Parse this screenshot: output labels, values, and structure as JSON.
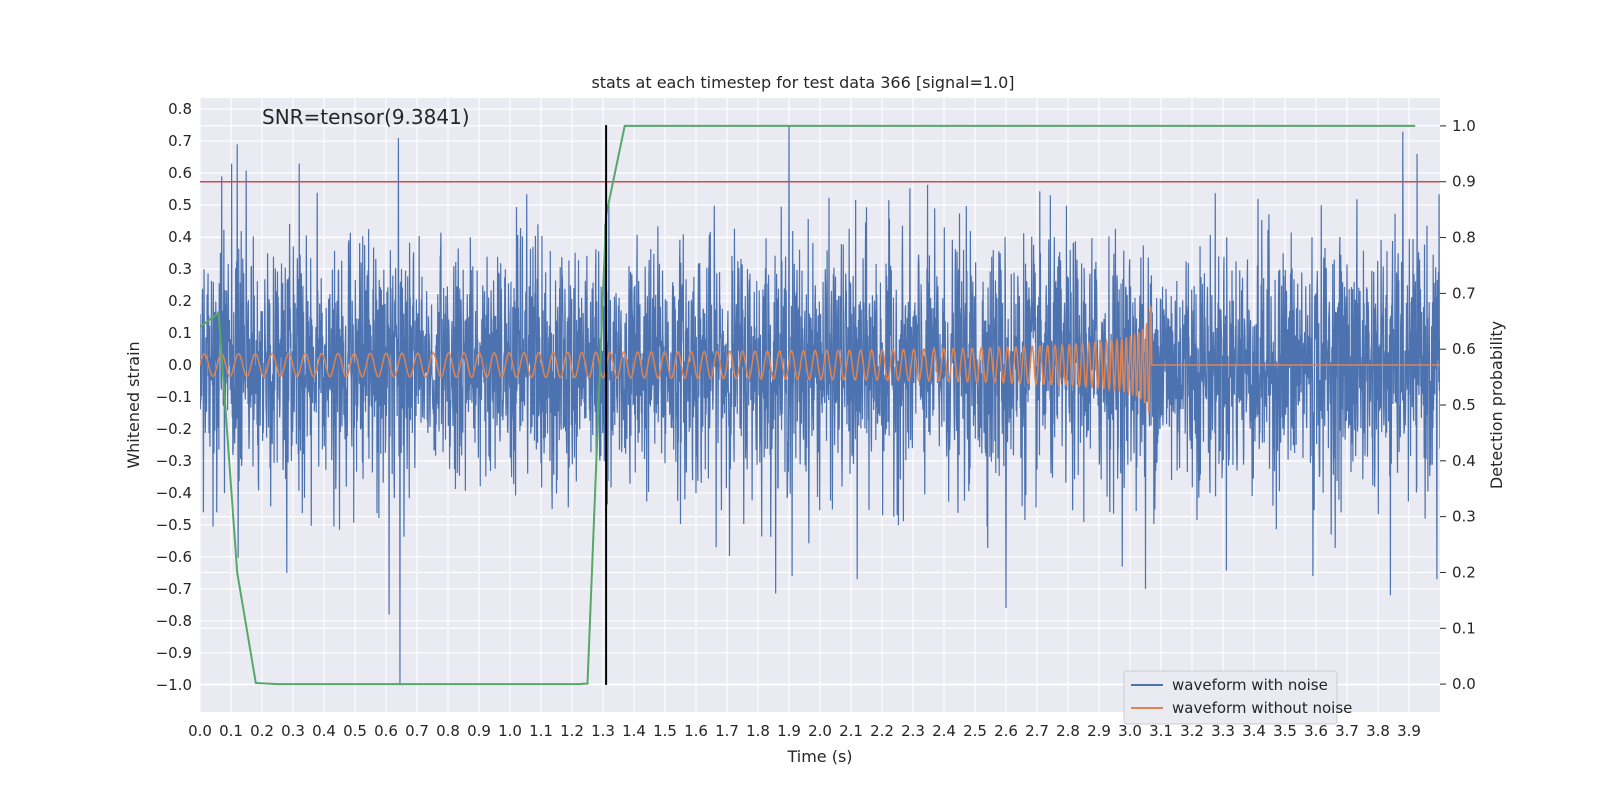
{
  "chart_data": {
    "type": "line",
    "title": "stats at each timestep for test data 366 [signal=1.0]",
    "xlabel": "Time (s)",
    "ylabel": "Whitened strain",
    "y2label": "Detection probability",
    "annotation": "SNR=tensor(9.3841)",
    "xlim": [
      0.0,
      4.0
    ],
    "ylim": [
      -1.085,
      0.835
    ],
    "y2lim": [
      -0.05,
      1.05
    ],
    "x_ticks": [
      "0.0",
      "0.1",
      "0.2",
      "0.3",
      "0.4",
      "0.5",
      "0.6",
      "0.7",
      "0.8",
      "0.9",
      "1.0",
      "1.1",
      "1.2",
      "1.3",
      "1.4",
      "1.5",
      "1.6",
      "1.7",
      "1.8",
      "1.9",
      "2.0",
      "2.1",
      "2.2",
      "2.3",
      "2.4",
      "2.5",
      "2.6",
      "2.7",
      "2.8",
      "2.9",
      "3.0",
      "3.1",
      "3.2",
      "3.3",
      "3.4",
      "3.5",
      "3.6",
      "3.7",
      "3.8",
      "3.9"
    ],
    "y_ticks": [
      "0.8",
      "0.7",
      "0.6",
      "0.5",
      "0.4",
      "0.3",
      "0.2",
      "0.1",
      "0.0",
      "−0.1",
      "−0.2",
      "−0.3",
      "−0.4",
      "−0.5",
      "−0.6",
      "−0.7",
      "−0.8",
      "−0.9",
      "−1.0"
    ],
    "y2_ticks": [
      "1.0",
      "0.9",
      "0.8",
      "0.7",
      "0.6",
      "0.5",
      "0.4",
      "0.3",
      "0.2",
      "0.1",
      "0.0"
    ],
    "grid": true,
    "legend_position": "bottom-right",
    "series": [
      {
        "name": "waveform with noise",
        "axis": "left",
        "color": "#4c72b0",
        "noise_std": 0.19,
        "spikes": [
          {
            "x": 0.07,
            "y": 0.59
          },
          {
            "x": 0.12,
            "y": 0.69
          },
          {
            "x": 0.28,
            "y": -0.65
          },
          {
            "x": 0.32,
            "y": 0.63
          },
          {
            "x": 0.61,
            "y": -0.78
          },
          {
            "x": 0.64,
            "y": 0.71
          },
          {
            "x": 0.645,
            "y": -1.0
          },
          {
            "x": 1.9,
            "y": 0.75
          },
          {
            "x": 1.91,
            "y": -0.66
          },
          {
            "x": 2.12,
            "y": -0.67
          },
          {
            "x": 2.6,
            "y": -0.76
          },
          {
            "x": 3.05,
            "y": -0.7
          },
          {
            "x": 3.59,
            "y": -0.66
          },
          {
            "x": 3.84,
            "y": -0.72
          },
          {
            "x": 3.88,
            "y": 0.73
          },
          {
            "x": 3.99,
            "y": -0.67
          }
        ]
      },
      {
        "name": "waveform without noise",
        "axis": "left",
        "color": "#dd8452",
        "chirp": {
          "start_amplitude": 0.035,
          "peak_amplitude": 0.26,
          "start_frequency_hz": 18,
          "peak_frequency_hz": 48,
          "merger_time": 3.07,
          "post_merger_level": 0.0
        }
      },
      {
        "name": "detection probability",
        "axis": "right",
        "color": "#55a868",
        "x": [
          0.0,
          0.06,
          0.12,
          0.18,
          0.25,
          0.31,
          0.37,
          0.43,
          0.49,
          0.55,
          0.61,
          0.67,
          0.73,
          0.79,
          0.86,
          0.92,
          0.98,
          1.04,
          1.1,
          1.16,
          1.22,
          1.25,
          1.31,
          1.37,
          1.43,
          1.49,
          1.55,
          1.61,
          1.67,
          1.73,
          1.79,
          1.86,
          1.92,
          1.98,
          2.04,
          2.1,
          2.16,
          2.22,
          2.28,
          2.34,
          2.4,
          2.46,
          2.52,
          2.58,
          2.64,
          2.71,
          2.77,
          2.83,
          2.89,
          2.95,
          3.01,
          3.07,
          3.13,
          3.19,
          3.25,
          3.31,
          3.37,
          3.43,
          3.49,
          3.55,
          3.62,
          3.68,
          3.74,
          3.8,
          3.86,
          3.92
        ],
        "y": [
          0.64,
          0.665,
          0.2,
          0.002,
          0.0,
          0.0,
          0.0,
          0.0,
          0.0,
          0.0,
          0.0,
          0.0,
          0.0,
          0.0,
          0.0,
          0.0,
          0.0,
          0.0,
          0.0,
          0.0,
          0.0,
          0.001,
          0.84,
          1.0,
          1.0,
          1.0,
          1.0,
          1.0,
          1.0,
          1.0,
          1.0,
          1.0,
          1.0,
          1.0,
          1.0,
          1.0,
          1.0,
          1.0,
          1.0,
          1.0,
          1.0,
          1.0,
          1.0,
          1.0,
          1.0,
          1.0,
          1.0,
          1.0,
          1.0,
          1.0,
          1.0,
          1.0,
          1.0,
          1.0,
          1.0,
          1.0,
          1.0,
          1.0,
          1.0,
          1.0,
          1.0,
          1.0,
          1.0,
          1.0,
          1.0,
          1.0
        ]
      }
    ],
    "threshold": {
      "axis": "right",
      "value": 0.9,
      "color": "#c44e52"
    },
    "marker_line": {
      "x": 1.31,
      "y_from": -1.0,
      "y_to": 0.75,
      "color": "#000000"
    }
  }
}
